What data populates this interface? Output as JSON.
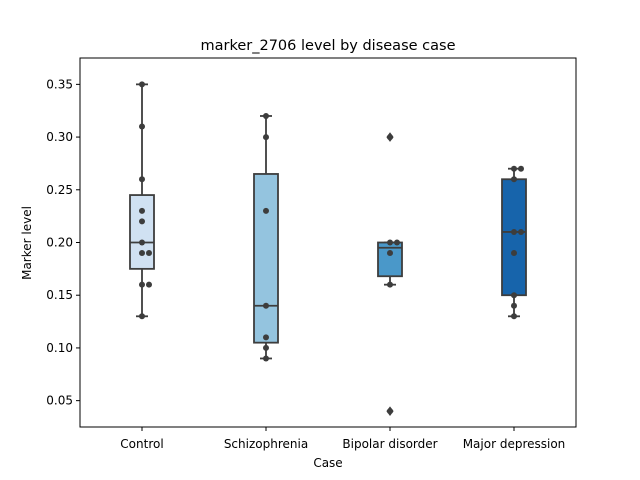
{
  "chart_data": {
    "type": "box",
    "title": "marker_2706 level by disease case",
    "xlabel": "Case",
    "ylabel": "Marker level",
    "ylim": [
      0.025,
      0.375
    ],
    "yticks": [
      0.05,
      0.1,
      0.15,
      0.2,
      0.25,
      0.3,
      0.35
    ],
    "ytick_labels": [
      "0.05",
      "0.10",
      "0.15",
      "0.20",
      "0.25",
      "0.30",
      "0.35"
    ],
    "grid": false,
    "categories": [
      "Control",
      "Schizophrenia",
      "Bipolar disorder",
      "Major depression"
    ],
    "colors": [
      "#d0e1f2",
      "#94c4df",
      "#4a98c9",
      "#1764ab"
    ],
    "boxes": [
      {
        "q1": 0.175,
        "median": 0.2,
        "q3": 0.245,
        "whisker_low": 0.13,
        "whisker_high": 0.35,
        "outliers": [],
        "points": [
          0.35,
          0.31,
          0.26,
          0.23,
          0.22,
          0.2,
          0.19,
          0.19,
          0.16,
          0.16,
          0.13
        ]
      },
      {
        "q1": 0.105,
        "median": 0.14,
        "q3": 0.265,
        "whisker_low": 0.09,
        "whisker_high": 0.32,
        "outliers": [],
        "points": [
          0.32,
          0.3,
          0.23,
          0.14,
          0.11,
          0.1,
          0.09
        ]
      },
      {
        "q1": 0.168,
        "median": 0.195,
        "q3": 0.2,
        "whisker_low": 0.16,
        "whisker_high": 0.2,
        "outliers": [
          0.3,
          0.04
        ],
        "points": [
          0.3,
          0.2,
          0.2,
          0.19,
          0.16,
          0.04
        ]
      },
      {
        "q1": 0.15,
        "median": 0.21,
        "q3": 0.26,
        "whisker_low": 0.13,
        "whisker_high": 0.27,
        "outliers": [],
        "points": [
          0.27,
          0.27,
          0.26,
          0.21,
          0.21,
          0.19,
          0.15,
          0.14,
          0.13
        ]
      }
    ]
  }
}
